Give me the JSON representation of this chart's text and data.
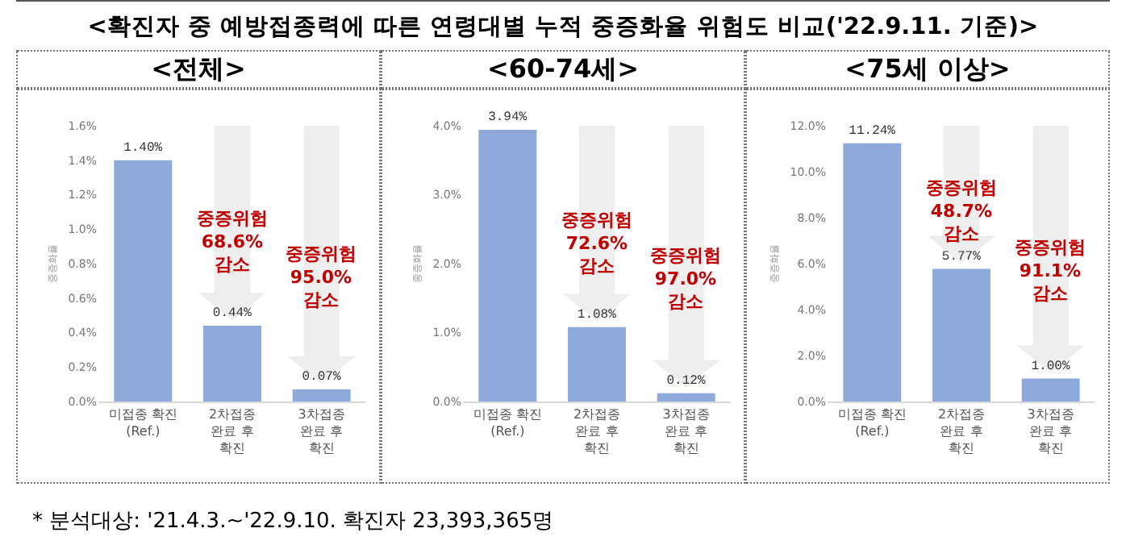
{
  "chart_data": [
    {
      "type": "bar",
      "title": "<전체>",
      "ylabel": "중증화율",
      "categories": [
        "미접종 확진\n(Ref.)",
        "2차접종\n완료 후\n확진",
        "3차접종\n완료 후\n확진"
      ],
      "values": [
        1.4,
        0.44,
        0.07
      ],
      "color": "#8eaadb",
      "value_labels": [
        "1.40%",
        "0.44%",
        "0.07%"
      ],
      "ylim": [
        0,
        1.6
      ],
      "yticks": [
        {
          "value": 0,
          "label": "0.0%"
        },
        {
          "value": 0.2,
          "label": "0.2%"
        },
        {
          "value": 0.4,
          "label": "0.4%"
        },
        {
          "value": 0.6,
          "label": "0.6%"
        },
        {
          "value": 0.8,
          "label": "0.8%"
        },
        {
          "value": 1,
          "label": "1.0%"
        },
        {
          "value": 1.2,
          "label": "1.2%"
        },
        {
          "value": 1.4,
          "label": "1.4%"
        },
        {
          "value": 1.6,
          "label": "1.6%"
        }
      ],
      "annotations": [
        "<확진자 중 예방접종력에 따른 연령대별 누적 중증화율 위험도 비교('22.9.11. 기준)>",
        "중증위험\n68.6%\n감소",
        "중증위험\n95.0%\n감소"
      ]
    },
    {
      "type": "bar",
      "title": "<60-74세>",
      "ylabel": "중증화율",
      "categories": [
        "미접종 확진\n(Ref.)",
        "2차접종\n완료 후\n확진",
        "3차접종\n완료 후\n확진"
      ],
      "values": [
        3.94,
        1.08,
        0.12
      ],
      "color": "#8eaadb",
      "value_labels": [
        "3.94%",
        "1.08%",
        "0.12%"
      ],
      "ylim": [
        0,
        4
      ],
      "yticks": [
        {
          "value": 0,
          "label": "0.0%"
        },
        {
          "value": 1,
          "label": "1.0%"
        },
        {
          "value": 2,
          "label": "2.0%"
        },
        {
          "value": 3,
          "label": "3.0%"
        },
        {
          "value": 4,
          "label": "4.0%"
        }
      ],
      "annotations": [
        "중증위험\n72.6%\n감소",
        "중증위험\n97.0%\n감소"
      ]
    },
    {
      "type": "bar",
      "title": "<75세 이상>",
      "ylabel": "중증화율",
      "categories": [
        "미접종 확진\n(Ref.)",
        "2차접종\n완료 후\n확진",
        "3차접종\n완료 후\n확진"
      ],
      "values": [
        11.24,
        5.77,
        1.0
      ],
      "color": "#8eaadb",
      "value_labels": [
        "11.24%",
        "5.77%",
        "1.00%"
      ],
      "ylim": [
        0,
        12
      ],
      "yticks": [
        {
          "value": 0,
          "label": "0.0%"
        },
        {
          "value": 2,
          "label": "2.0%"
        },
        {
          "value": 4,
          "label": "4.0%"
        },
        {
          "value": 6,
          "label": "6.0%"
        },
        {
          "value": 8,
          "label": "8.0%"
        },
        {
          "value": 10,
          "label": "10.0%"
        },
        {
          "value": 12,
          "label": "12.0%"
        }
      ],
      "annotations": [
        "중증위험\n48.7%\n감소",
        "중증위험\n91.1%\n감소",
        "* 분석대상: '21.4.3.~'22.9.10. 확진자 23,393,365명"
      ]
    }
  ]
}
